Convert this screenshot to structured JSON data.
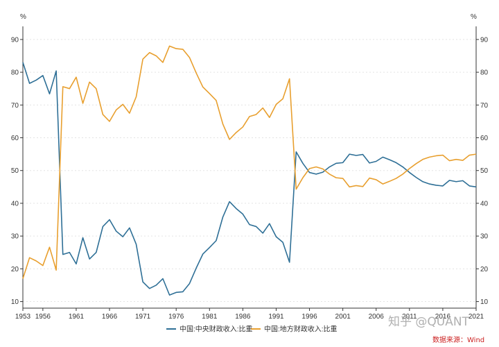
{
  "chart_data": {
    "type": "line",
    "y_unit_left": "%",
    "y_unit_right": "%",
    "ylim": [
      8,
      94
    ],
    "yticks": [
      10,
      20,
      30,
      40,
      50,
      60,
      70,
      80,
      90
    ],
    "xlim": [
      1953,
      2021
    ],
    "xticks": [
      1953,
      1956,
      1961,
      1966,
      1971,
      1976,
      1981,
      1986,
      1991,
      1996,
      2001,
      2006,
      2011,
      2016,
      2021
    ],
    "grid": true,
    "legend_position": "bottom",
    "x": [
      1953,
      1954,
      1955,
      1956,
      1957,
      1958,
      1959,
      1960,
      1961,
      1962,
      1963,
      1964,
      1965,
      1966,
      1967,
      1968,
      1969,
      1970,
      1971,
      1972,
      1973,
      1974,
      1975,
      1976,
      1977,
      1978,
      1979,
      1980,
      1981,
      1982,
      1983,
      1984,
      1985,
      1986,
      1987,
      1988,
      1989,
      1990,
      1991,
      1992,
      1993,
      1994,
      1995,
      1996,
      1997,
      1998,
      1999,
      2000,
      2001,
      2002,
      2003,
      2004,
      2005,
      2006,
      2007,
      2008,
      2009,
      2010,
      2011,
      2012,
      2013,
      2014,
      2015,
      2016,
      2017,
      2018,
      2019,
      2020,
      2021
    ],
    "series": [
      {
        "name": "中国:中央财政收入:比重",
        "color": "#2e6f96",
        "values": [
          83.0,
          76.6,
          77.6,
          79.0,
          73.4,
          80.4,
          24.4,
          25.0,
          21.5,
          29.5,
          23.0,
          25.0,
          32.9,
          35.0,
          31.5,
          29.8,
          32.5,
          27.5,
          16.0,
          14.0,
          15.0,
          17.0,
          12.0,
          12.8,
          13.0,
          15.5,
          20.2,
          24.5,
          26.5,
          28.6,
          35.8,
          40.5,
          38.4,
          36.7,
          33.5,
          32.9,
          30.9,
          33.8,
          29.8,
          28.1,
          22.0,
          55.7,
          52.2,
          49.4,
          48.9,
          49.5,
          51.1,
          52.2,
          52.4,
          55.0,
          54.6,
          54.9,
          52.3,
          52.8,
          54.1,
          53.3,
          52.4,
          51.1,
          49.4,
          47.9,
          46.6,
          45.9,
          45.5,
          45.3,
          47.0,
          46.6,
          46.9,
          45.3,
          45.0
        ]
      },
      {
        "name": "中国:地方财政收入:比重",
        "color": "#e89f2e",
        "values": [
          17.0,
          23.4,
          22.4,
          21.0,
          26.6,
          19.6,
          75.6,
          75.0,
          78.5,
          70.5,
          77.0,
          75.0,
          67.1,
          65.0,
          68.5,
          70.2,
          67.5,
          72.5,
          84.0,
          86.0,
          85.0,
          83.0,
          88.0,
          87.2,
          87.0,
          84.5,
          79.8,
          75.5,
          73.5,
          71.4,
          64.2,
          59.5,
          61.6,
          63.3,
          66.5,
          67.1,
          69.1,
          66.2,
          70.2,
          71.9,
          78.0,
          44.3,
          47.8,
          50.6,
          51.1,
          50.5,
          48.9,
          47.8,
          47.6,
          45.0,
          45.4,
          45.1,
          47.7,
          47.2,
          45.9,
          46.7,
          47.6,
          48.9,
          50.6,
          52.1,
          53.4,
          54.1,
          54.5,
          54.7,
          53.0,
          53.4,
          53.1,
          54.7,
          55.0
        ]
      }
    ]
  },
  "watermark": "知乎 @QUANT",
  "source": "数据来源：Wind"
}
